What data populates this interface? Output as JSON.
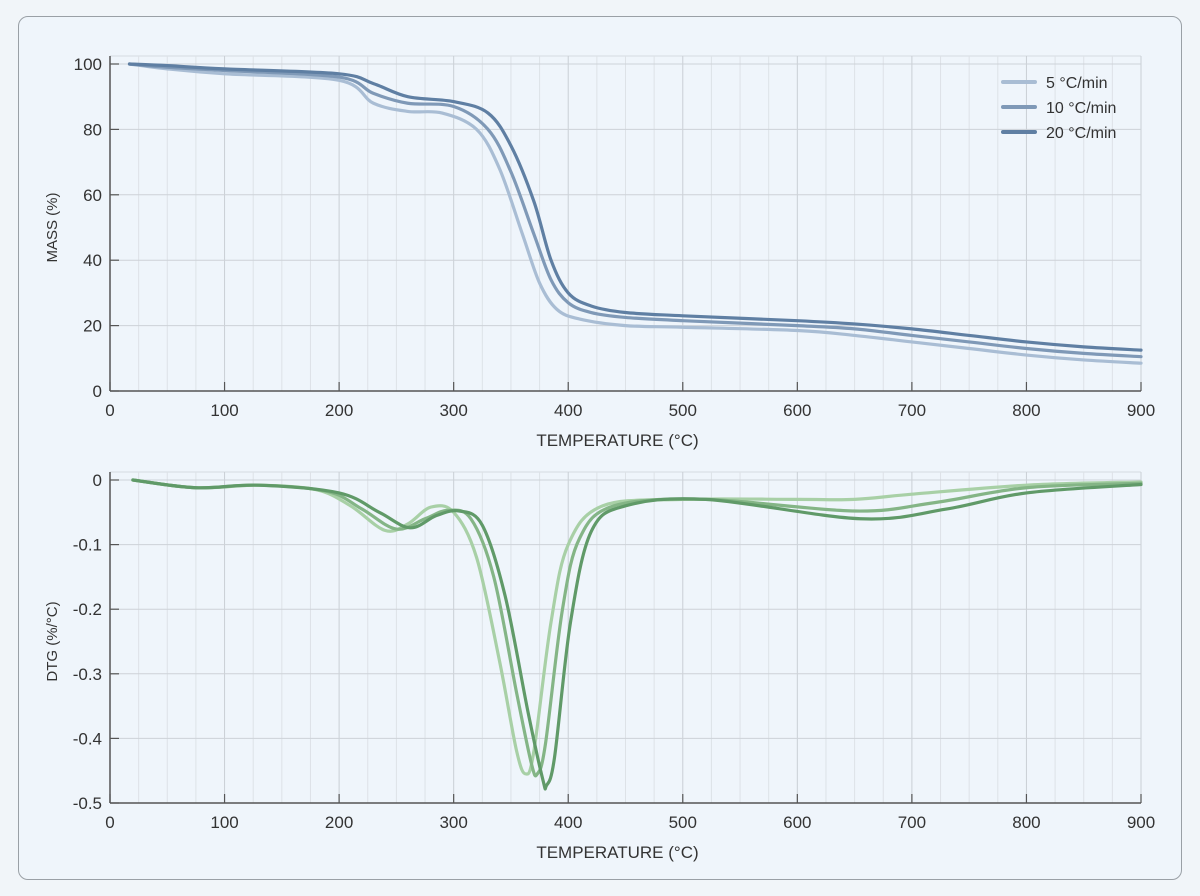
{
  "chart_data": [
    {
      "type": "line",
      "xlabel": "TEMPERATURE (°C)",
      "ylabel": "MASS (%)",
      "xlim": [
        0,
        900
      ],
      "ylim": [
        0,
        100
      ],
      "xticks": [
        0,
        100,
        200,
        300,
        400,
        500,
        600,
        700,
        800,
        900
      ],
      "yticks": [
        0,
        20,
        40,
        60,
        80,
        100
      ],
      "grid": true,
      "legend_position": "top-right",
      "series": [
        {
          "name": "5 °C/min",
          "color": "#a9bdd4",
          "x": [
            17,
            50,
            100,
            200,
            230,
            260,
            290,
            320,
            340,
            360,
            375,
            390,
            410,
            450,
            500,
            600,
            650,
            700,
            750,
            800,
            850,
            900
          ],
          "y": [
            100,
            98.5,
            97,
            95,
            88,
            85.5,
            85,
            80,
            68,
            48,
            33,
            25,
            22,
            20,
            19.5,
            18.5,
            17,
            15,
            13,
            11,
            9.5,
            8.5
          ]
        },
        {
          "name": "10 °C/min",
          "color": "#7f99b7",
          "x": [
            17,
            50,
            100,
            200,
            230,
            260,
            300,
            330,
            350,
            370,
            385,
            400,
            420,
            450,
            500,
            600,
            650,
            700,
            750,
            800,
            850,
            900
          ],
          "y": [
            100,
            99,
            98,
            96,
            91,
            88,
            87,
            80,
            67,
            48,
            34,
            27,
            24,
            22.5,
            21.5,
            20,
            19,
            17,
            15,
            13,
            11.5,
            10.5
          ]
        },
        {
          "name": "20 °C/min",
          "color": "#5f7fa3",
          "x": [
            17,
            50,
            100,
            200,
            230,
            260,
            300,
            330,
            350,
            370,
            385,
            400,
            420,
            450,
            500,
            600,
            650,
            700,
            750,
            800,
            850,
            900
          ],
          "y": [
            100,
            99.5,
            98.5,
            97,
            94,
            90,
            88.5,
            85,
            75,
            58,
            40,
            30,
            26,
            24,
            23,
            21.5,
            20.5,
            19,
            17,
            15,
            13.5,
            12.5
          ]
        }
      ]
    },
    {
      "type": "line",
      "xlabel": "TEMPERATURE (°C)",
      "ylabel": "DTG (%/°C)",
      "xlim": [
        0,
        900
      ],
      "ylim": [
        -0.5,
        0
      ],
      "xticks": [
        0,
        100,
        200,
        300,
        400,
        500,
        600,
        700,
        800,
        900
      ],
      "yticks": [
        0,
        -0.1,
        -0.2,
        -0.3,
        -0.4,
        -0.5
      ],
      "ytick_labels": [
        "0",
        "-0.1",
        "-0.2",
        "-0.3",
        "-0.4",
        "-0.5"
      ],
      "grid": true,
      "series": [
        {
          "rate": "5 °C/min",
          "color": "#a8d0a6",
          "x": [
            20,
            75,
            130,
            180,
            210,
            240,
            260,
            280,
            300,
            320,
            340,
            355,
            363,
            370,
            385,
            400,
            430,
            500,
            600,
            650,
            700,
            800,
            900
          ],
          "y": [
            0,
            -0.012,
            -0.008,
            -0.015,
            -0.04,
            -0.078,
            -0.068,
            -0.042,
            -0.05,
            -0.12,
            -0.28,
            -0.42,
            -0.455,
            -0.42,
            -0.22,
            -0.1,
            -0.04,
            -0.03,
            -0.03,
            -0.03,
            -0.022,
            -0.008,
            -0.003
          ]
        },
        {
          "rate": "10 °C/min",
          "color": "#84b586",
          "x": [
            20,
            75,
            130,
            190,
            220,
            250,
            275,
            295,
            315,
            335,
            355,
            368,
            373,
            380,
            395,
            410,
            440,
            520,
            650,
            720,
            800,
            900
          ],
          "y": [
            0,
            -0.012,
            -0.008,
            -0.018,
            -0.045,
            -0.076,
            -0.06,
            -0.047,
            -0.06,
            -0.15,
            -0.33,
            -0.44,
            -0.455,
            -0.41,
            -0.2,
            -0.09,
            -0.04,
            -0.03,
            -0.048,
            -0.035,
            -0.012,
            -0.005
          ]
        },
        {
          "rate": "20 °C/min",
          "color": "#609a68",
          "x": [
            20,
            75,
            130,
            200,
            235,
            262,
            285,
            305,
            325,
            345,
            365,
            378,
            381,
            388,
            402,
            420,
            450,
            520,
            655,
            730,
            800,
            900
          ],
          "y": [
            0,
            -0.012,
            -0.008,
            -0.02,
            -0.05,
            -0.074,
            -0.055,
            -0.048,
            -0.07,
            -0.18,
            -0.36,
            -0.465,
            -0.473,
            -0.43,
            -0.22,
            -0.08,
            -0.04,
            -0.03,
            -0.06,
            -0.045,
            -0.02,
            -0.007
          ]
        }
      ]
    }
  ]
}
